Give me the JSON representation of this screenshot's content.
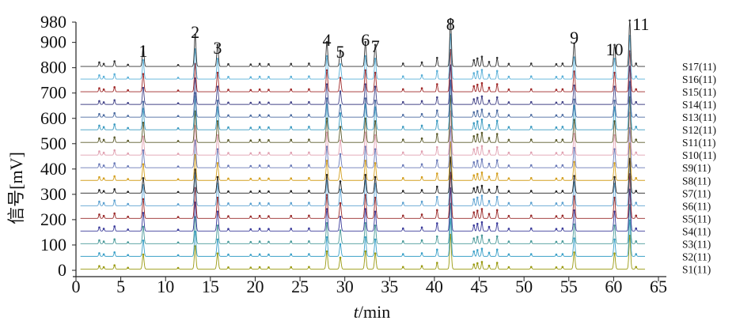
{
  "chart_data": {
    "type": "line",
    "xlabel": "t/min",
    "xlabel_italic_part": "t",
    "xlabel_unit_part": "/min",
    "ylabel": "信号[mV]",
    "xlim": [
      0,
      65
    ],
    "ylim": [
      0,
      980
    ],
    "x_ticks": [
      0,
      5,
      10,
      15,
      20,
      25,
      30,
      35,
      40,
      45,
      50,
      55,
      60,
      65
    ],
    "y_ticks": [
      0,
      100,
      200,
      300,
      400,
      500,
      600,
      700,
      800,
      900,
      980
    ],
    "grid": false,
    "peak_labels": [
      {
        "label": "1",
        "x": 7.5
      },
      {
        "label": "2",
        "x": 13.3
      },
      {
        "label": "3",
        "x": 15.8
      },
      {
        "label": "4",
        "x": 28.0
      },
      {
        "label": "5",
        "x": 29.5
      },
      {
        "label": "6",
        "x": 32.3
      },
      {
        "label": "7",
        "x": 33.4
      },
      {
        "label": "8",
        "x": 41.8
      },
      {
        "label": "9",
        "x": 55.6
      },
      {
        "label": "10",
        "x": 60.1
      },
      {
        "label": "11",
        "x": 61.8
      }
    ],
    "series": [
      {
        "name": "S1(11)",
        "baseline": 5,
        "color": "#9a9a10"
      },
      {
        "name": "S2(11)",
        "baseline": 55,
        "color": "#3aa0c8"
      },
      {
        "name": "S3(11)",
        "baseline": 105,
        "color": "#4a9a9a"
      },
      {
        "name": "S4(11)",
        "baseline": 155,
        "color": "#3a3a9a"
      },
      {
        "name": "S5(11)",
        "baseline": 205,
        "color": "#9a2a2a"
      },
      {
        "name": "S6(11)",
        "baseline": 255,
        "color": "#5aa0d0"
      },
      {
        "name": "S7(11)",
        "baseline": 305,
        "color": "#222222"
      },
      {
        "name": "S8(11)",
        "baseline": 355,
        "color": "#d4a020"
      },
      {
        "name": "S9(11)",
        "baseline": 405,
        "color": "#6a7ab8"
      },
      {
        "name": "S10(11)",
        "baseline": 455,
        "color": "#e0a0b0"
      },
      {
        "name": "S11(11)",
        "baseline": 505,
        "color": "#5a5a2a"
      },
      {
        "name": "S12(11)",
        "baseline": 555,
        "color": "#3a9ac0"
      },
      {
        "name": "S13(11)",
        "baseline": 605,
        "color": "#4a6aa0"
      },
      {
        "name": "S14(11)",
        "baseline": 655,
        "color": "#444488"
      },
      {
        "name": "S15(11)",
        "baseline": 705,
        "color": "#a02a2a"
      },
      {
        "name": "S16(11)",
        "baseline": 755,
        "color": "#5ab0d8"
      },
      {
        "name": "S17(11)",
        "baseline": 805,
        "color": "#333333"
      }
    ],
    "main_peaks": [
      {
        "x": 7.5,
        "height": 70
      },
      {
        "x": 13.3,
        "height": 110
      },
      {
        "x": 15.8,
        "height": 75
      },
      {
        "x": 28.0,
        "height": 85
      },
      {
        "x": 29.5,
        "height": 55
      },
      {
        "x": 32.3,
        "height": 85
      },
      {
        "x": 33.4,
        "height": 75
      },
      {
        "x": 41.8,
        "height": 165
      },
      {
        "x": 55.6,
        "height": 80
      },
      {
        "x": 60.1,
        "height": 75
      },
      {
        "x": 61.8,
        "height": 160
      }
    ],
    "minor_peaks": [
      {
        "x": 2.6,
        "height": 14
      },
      {
        "x": 3.1,
        "height": 9
      },
      {
        "x": 4.3,
        "height": 18
      },
      {
        "x": 5.8,
        "height": 6
      },
      {
        "x": 11.4,
        "height": 5
      },
      {
        "x": 17.0,
        "height": 8
      },
      {
        "x": 19.5,
        "height": 7
      },
      {
        "x": 20.5,
        "height": 9
      },
      {
        "x": 21.5,
        "height": 8
      },
      {
        "x": 24.0,
        "height": 9
      },
      {
        "x": 26.0,
        "height": 10
      },
      {
        "x": 36.5,
        "height": 10
      },
      {
        "x": 38.6,
        "height": 14
      },
      {
        "x": 40.3,
        "height": 30
      },
      {
        "x": 44.4,
        "height": 22
      },
      {
        "x": 44.8,
        "height": 28
      },
      {
        "x": 45.3,
        "height": 34
      },
      {
        "x": 46.1,
        "height": 16
      },
      {
        "x": 47.0,
        "height": 30
      },
      {
        "x": 48.3,
        "height": 9
      },
      {
        "x": 50.8,
        "height": 10
      },
      {
        "x": 53.6,
        "height": 8
      },
      {
        "x": 54.3,
        "height": 10
      },
      {
        "x": 62.5,
        "height": 10
      }
    ]
  }
}
